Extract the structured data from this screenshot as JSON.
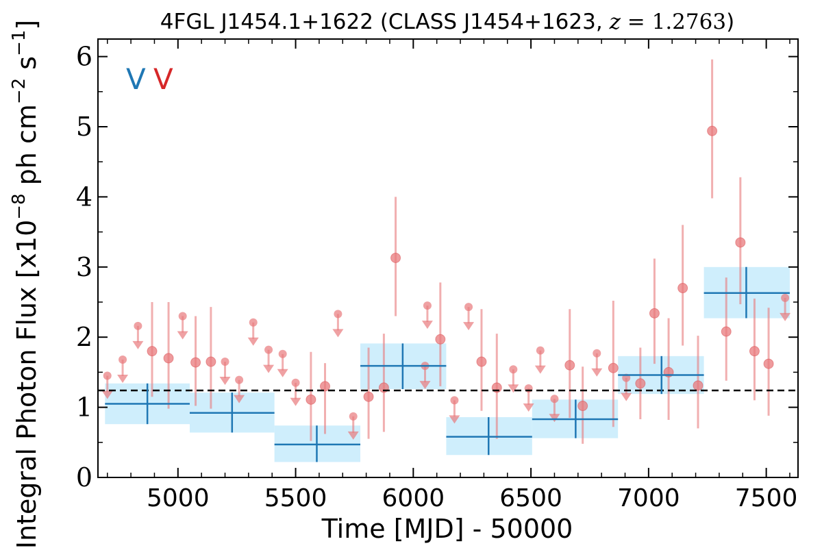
{
  "chart_data": {
    "type": "scatter",
    "title": {
      "prefix": "4FGL J1454.1+1622 (CLASS J1454+1623, ",
      "z_symbol": "z",
      "equals": " = ",
      "z_value": "1.2763",
      "suffix": ")"
    },
    "xlabel": "Time [MJD] - 50000",
    "ylabel": {
      "prefix": "Integral Photon Flux [x10",
      "exp1": "−8",
      "middle": " ph cm",
      "exp2": "−2",
      "middle2": " s",
      "exp3": "−1",
      "suffix": "]"
    },
    "xlim": [
      4660,
      7635
    ],
    "ylim": [
      0,
      6.25
    ],
    "xticks": [
      5000,
      5500,
      6000,
      6500,
      7000,
      7500
    ],
    "xtick_labels": [
      "5000",
      "5500",
      "6000",
      "6500",
      "7000",
      "7500"
    ],
    "yticks": [
      0,
      1,
      2,
      3,
      4,
      5,
      6
    ],
    "ytick_labels": [
      "0",
      "1",
      "2",
      "3",
      "4",
      "5",
      "6"
    ],
    "mean_flux": 1.24,
    "vhe_markers": [
      {
        "label": "V",
        "color": "#1f77b4"
      },
      {
        "label": "V",
        "color": "#d62728"
      }
    ],
    "colors": {
      "long_bin": "#1f77b4",
      "long_bin_band": "#cfeefc",
      "short_bin": "#e8797c",
      "mean_line": "#000000"
    },
    "series": [
      {
        "bin": "long",
        "points": [
          {
            "x": 4870,
            "x_lo": 4690,
            "x_hi": 5050,
            "y": 1.05,
            "y_lo": 0.76,
            "y_hi": 1.34
          },
          {
            "x": 5230,
            "x_lo": 5050,
            "x_hi": 5410,
            "y": 0.92,
            "y_lo": 0.64,
            "y_hi": 1.21
          },
          {
            "x": 5590,
            "x_lo": 5410,
            "x_hi": 5775,
            "y": 0.47,
            "y_lo": 0.22,
            "y_hi": 0.74
          },
          {
            "x": 5955,
            "x_lo": 5775,
            "x_hi": 6140,
            "y": 1.59,
            "y_lo": 1.26,
            "y_hi": 1.91
          },
          {
            "x": 6320,
            "x_lo": 6140,
            "x_hi": 6505,
            "y": 0.58,
            "y_lo": 0.32,
            "y_hi": 0.86
          },
          {
            "x": 6690,
            "x_lo": 6505,
            "x_hi": 6870,
            "y": 0.83,
            "y_lo": 0.56,
            "y_hi": 1.11
          },
          {
            "x": 7055,
            "x_lo": 6870,
            "x_hi": 7235,
            "y": 1.46,
            "y_lo": 1.19,
            "y_hi": 1.73
          },
          {
            "x": 7415,
            "x_lo": 7235,
            "x_hi": 7600,
            "y": 2.63,
            "y_lo": 2.27,
            "y_hi": 3.0
          }
        ]
      },
      {
        "bin": "short",
        "detections": [
          {
            "x": 4890,
            "y": 1.8,
            "y_lo": 1.15,
            "y_hi": 2.5
          },
          {
            "x": 4960,
            "y": 1.7,
            "y_lo": 0.98,
            "y_hi": 2.5
          },
          {
            "x": 5075,
            "y": 1.64,
            "y_lo": 1.02,
            "y_hi": 2.3
          },
          {
            "x": 5140,
            "y": 1.65,
            "y_lo": 0.98,
            "y_hi": 2.43
          },
          {
            "x": 5565,
            "y": 1.11,
            "y_lo": 0.52,
            "y_hi": 1.79
          },
          {
            "x": 5625,
            "y": 1.3,
            "y_lo": 0.62,
            "y_hi": 1.63
          },
          {
            "x": 5810,
            "y": 1.15,
            "y_lo": 0.55,
            "y_hi": 1.85
          },
          {
            "x": 5875,
            "y": 1.28,
            "y_lo": 0.65,
            "y_hi": 2.05
          },
          {
            "x": 5925,
            "y": 3.13,
            "y_lo": 2.3,
            "y_hi": 4.0
          },
          {
            "x": 6115,
            "y": 1.97,
            "y_lo": 1.3,
            "y_hi": 2.78
          },
          {
            "x": 6290,
            "y": 1.65,
            "y_lo": 0.95,
            "y_hi": 2.4
          },
          {
            "x": 6355,
            "y": 1.28,
            "y_lo": 0.55,
            "y_hi": 2.05
          },
          {
            "x": 6665,
            "y": 1.6,
            "y_lo": 0.85,
            "y_hi": 2.4
          },
          {
            "x": 6720,
            "y": 1.02,
            "y_lo": 0.48,
            "y_hi": 1.58
          },
          {
            "x": 6850,
            "y": 1.56,
            "y_lo": 0.72,
            "y_hi": 2.52
          },
          {
            "x": 6965,
            "y": 1.34,
            "y_lo": 0.83,
            "y_hi": 1.85
          },
          {
            "x": 7025,
            "y": 2.34,
            "y_lo": 1.62,
            "y_hi": 3.12
          },
          {
            "x": 7085,
            "y": 1.5,
            "y_lo": 0.82,
            "y_hi": 2.27
          },
          {
            "x": 7145,
            "y": 2.7,
            "y_lo": 1.88,
            "y_hi": 3.6
          },
          {
            "x": 7210,
            "y": 1.31,
            "y_lo": 0.7,
            "y_hi": 2.02
          },
          {
            "x": 7270,
            "y": 4.94,
            "y_lo": 3.98,
            "y_hi": 5.96
          },
          {
            "x": 7330,
            "y": 2.08,
            "y_lo": 1.38,
            "y_hi": 2.85
          },
          {
            "x": 7390,
            "y": 3.35,
            "y_lo": 2.47,
            "y_hi": 4.28
          },
          {
            "x": 7450,
            "y": 1.8,
            "y_lo": 1.1,
            "y_hi": 2.55
          },
          {
            "x": 7510,
            "y": 1.62,
            "y_lo": 0.88,
            "y_hi": 2.42
          }
        ],
        "upper_limits": [
          {
            "x": 4700,
            "y": 1.45
          },
          {
            "x": 4765,
            "y": 1.68
          },
          {
            "x": 4830,
            "y": 2.16
          },
          {
            "x": 5020,
            "y": 2.3
          },
          {
            "x": 5200,
            "y": 1.65
          },
          {
            "x": 5260,
            "y": 1.39
          },
          {
            "x": 5320,
            "y": 2.21
          },
          {
            "x": 5385,
            "y": 1.82
          },
          {
            "x": 5445,
            "y": 1.76
          },
          {
            "x": 5500,
            "y": 1.35
          },
          {
            "x": 5680,
            "y": 2.33
          },
          {
            "x": 5745,
            "y": 0.87
          },
          {
            "x": 6060,
            "y": 2.45
          },
          {
            "x": 6050,
            "y": 1.59
          },
          {
            "x": 6175,
            "y": 1.1
          },
          {
            "x": 6235,
            "y": 2.43
          },
          {
            "x": 6425,
            "y": 1.54
          },
          {
            "x": 6490,
            "y": 1.27
          },
          {
            "x": 6540,
            "y": 1.81
          },
          {
            "x": 6600,
            "y": 1.12
          },
          {
            "x": 6780,
            "y": 1.77
          },
          {
            "x": 6905,
            "y": 1.42
          },
          {
            "x": 7580,
            "y": 2.56
          }
        ]
      }
    ]
  }
}
